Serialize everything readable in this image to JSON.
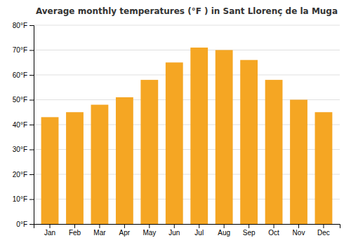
{
  "chart_data": {
    "type": "bar",
    "title": "Average monthly temperatures (°F ) in Sant Llorenç de la Muga",
    "categories": [
      "Jan",
      "Feb",
      "Mar",
      "Apr",
      "May",
      "Jun",
      "Jul",
      "Aug",
      "Sep",
      "Oct",
      "Nov",
      "Dec"
    ],
    "values": [
      43,
      45,
      48,
      51,
      58,
      65,
      71,
      70,
      66,
      58,
      50,
      45
    ],
    "color": "#F5A623",
    "ylim": [
      0,
      80
    ],
    "yticks": [
      {
        "value": 0,
        "label": "0°F"
      },
      {
        "value": 10,
        "label": "10°F"
      },
      {
        "value": 20,
        "label": "20°F"
      },
      {
        "value": 30,
        "label": "30°F"
      },
      {
        "value": 40,
        "label": "40°F"
      },
      {
        "value": 50,
        "label": "50°F"
      },
      {
        "value": 60,
        "label": "60°F"
      },
      {
        "value": 70,
        "label": "70°F"
      },
      {
        "value": 80,
        "label": "80°F"
      }
    ],
    "grid": true
  }
}
